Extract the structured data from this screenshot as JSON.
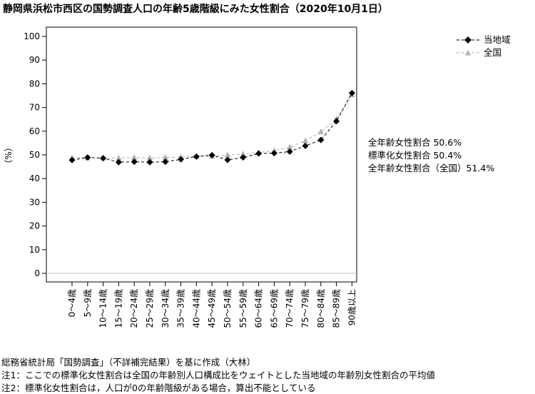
{
  "chart_data": {
    "type": "line",
    "title": "静岡県浜松市西区の国勢調査人口の年齢5歳階級にみた女性割合（2020年10月1日）",
    "ylabel": "（%）",
    "ylim": [
      0,
      100
    ],
    "yticks": [
      "0",
      "10",
      "20",
      "30",
      "40",
      "50",
      "60",
      "70",
      "80",
      "90",
      "100"
    ],
    "grid": false,
    "legend_position": "top-right",
    "categories": [
      "0～4歳",
      "5～9歳",
      "10～14歳",
      "15～19歳",
      "20～24歳",
      "25～29歳",
      "30～34歳",
      "35～39歳",
      "40～44歳",
      "45～49歳",
      "50～54歳",
      "55～59歳",
      "60～64歳",
      "65～69歳",
      "70～74歳",
      "75～79歳",
      "80～84歳",
      "85～89歳",
      "90歳以上"
    ],
    "series": [
      {
        "name": "当地域",
        "color": "#000000",
        "marker": "diamond",
        "values": [
          47.8,
          48.9,
          48.6,
          46.9,
          47.1,
          46.9,
          47.1,
          48.1,
          49.3,
          49.9,
          47.9,
          48.9,
          50.6,
          50.7,
          51.4,
          53.8,
          56.3,
          64.2,
          76.1
        ]
      },
      {
        "name": "全国",
        "color": "#b0b0b0",
        "marker": "triangle",
        "values": [
          48.8,
          48.8,
          48.8,
          48.7,
          48.9,
          48.7,
          48.9,
          49.1,
          49.4,
          49.5,
          50.0,
          50.4,
          51.0,
          51.8,
          53.3,
          56.0,
          59.8,
          65.2,
          75.4
        ]
      }
    ],
    "annotations": [
      "全年齢女性割合 50.6%",
      "標準化女性割合 50.4%",
      "全年齢女性割合（全国）51.4%"
    ]
  },
  "footer": {
    "source": "総務省統計局「国勢調査」（不詳補完結果）を基に作成（大林）",
    "note1": "注1：ここでの標準化女性割合は全国の年齢別人口構成比をウェイトとした当地域の年齢別女性割合の平均値",
    "note2": "注2：標準化女性割合は，人口が0の年齢階級がある場合，算出不能としている"
  }
}
